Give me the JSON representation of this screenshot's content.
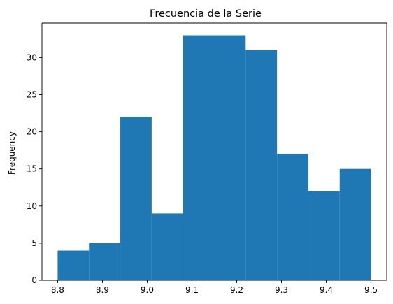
{
  "chart_data": {
    "type": "histogram",
    "title": "Frecuencia de la Serie",
    "xlabel": "",
    "ylabel": "Frequency",
    "bins": [
      {
        "start": 8.8,
        "end": 8.87,
        "count": 4
      },
      {
        "start": 8.87,
        "end": 8.94,
        "count": 5
      },
      {
        "start": 8.94,
        "end": 9.01,
        "count": 22
      },
      {
        "start": 9.01,
        "end": 9.08,
        "count": 9
      },
      {
        "start": 9.08,
        "end": 9.15,
        "count": 33
      },
      {
        "start": 9.15,
        "end": 9.22,
        "count": 33
      },
      {
        "start": 9.22,
        "end": 9.29,
        "count": 31
      },
      {
        "start": 9.29,
        "end": 9.36,
        "count": 17
      },
      {
        "start": 9.36,
        "end": 9.43,
        "count": 12
      },
      {
        "start": 9.43,
        "end": 9.5,
        "count": 15
      }
    ],
    "xticks": [
      "8.8",
      "8.9",
      "9.0",
      "9.1",
      "9.2",
      "9.3",
      "9.4",
      "9.5"
    ],
    "yticks": [
      "0",
      "5",
      "10",
      "15",
      "20",
      "25",
      "30"
    ],
    "xlim": [
      8.765,
      9.535
    ],
    "ylim": [
      0,
      34.65
    ],
    "bar_color": "#1f77b4",
    "grid": false,
    "legend": "none"
  }
}
